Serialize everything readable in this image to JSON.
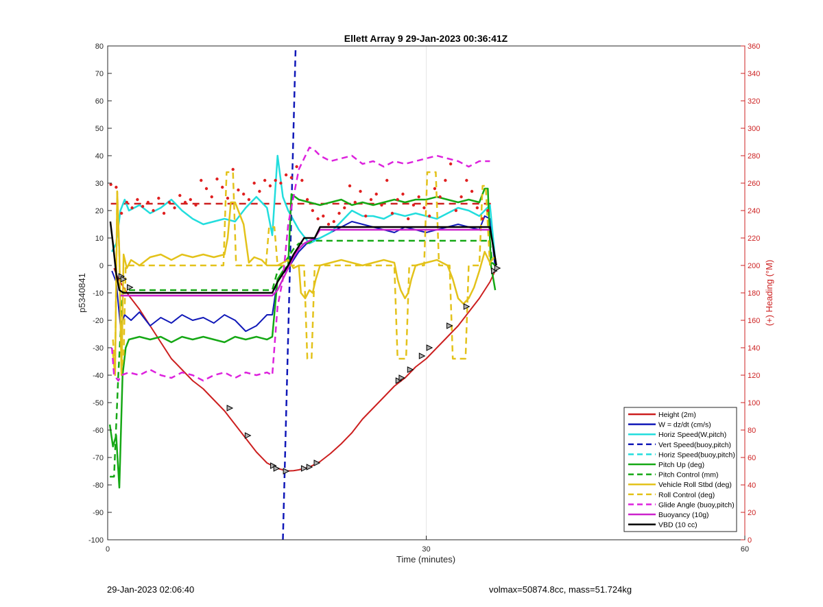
{
  "chart_data": {
    "type": "line",
    "title": "Ellett Array 9 29-Jan-2023 00:36:41Z",
    "xlabel": "Time (minutes)",
    "ylabel": "p5340841",
    "y2label": "(+) Heading (°M)",
    "xlim": [
      0,
      60
    ],
    "ylim": [
      -100,
      80
    ],
    "y2lim": [
      0,
      360
    ],
    "xticks": [
      0,
      30,
      60
    ],
    "yticks": [
      -100,
      -90,
      -80,
      -70,
      -60,
      -50,
      -40,
      -30,
      -20,
      -10,
      0,
      10,
      20,
      30,
      40,
      50,
      60,
      70,
      80
    ],
    "y2ticks": [
      0,
      20,
      40,
      60,
      80,
      100,
      120,
      140,
      160,
      180,
      200,
      220,
      240,
      260,
      280,
      300,
      320,
      340,
      360
    ],
    "grid": true,
    "legend_position": "bottom-right",
    "colors": {
      "heading_axis": "#cc1f1f",
      "heading_dots": "#e02020"
    },
    "series": [
      {
        "name": "Height (2m)",
        "color": "#cc1f1f",
        "style": "solid",
        "width": 2,
        "x": [
          0.6,
          1.0,
          1.5,
          2.0,
          3,
          4,
          5,
          6,
          7,
          8,
          9,
          10,
          11,
          12,
          13,
          14,
          15,
          16,
          16.5,
          17,
          17.5,
          18,
          19,
          20,
          21,
          22,
          23,
          24,
          25,
          26,
          27,
          28,
          29,
          30,
          31,
          32,
          33,
          34,
          35,
          36,
          36.6
        ],
        "y": [
          -1,
          -5,
          -8,
          -11,
          -16,
          -22,
          -28,
          -34,
          -38,
          -42,
          -45,
          -49,
          -53,
          -58,
          -63,
          -68,
          -72,
          -74,
          -74.5,
          -74.9,
          -74.8,
          -74.5,
          -73.5,
          -71.5,
          -68.5,
          -65,
          -61,
          -56,
          -52,
          -48,
          -44,
          -41,
          -37,
          -34,
          -30,
          -26,
          -22,
          -17,
          -12,
          -6,
          -1
        ]
      },
      {
        "name": "W = dz/dt (cm/s)",
        "color": "#1018b8",
        "style": "solid",
        "width": 2,
        "x": [
          0.4,
          0.8,
          1.2,
          1.6,
          2.2,
          3,
          4,
          5,
          6,
          7,
          8,
          9,
          10,
          11,
          12,
          13,
          14,
          15,
          15.5,
          16,
          16.5,
          17,
          18,
          19,
          20,
          21,
          22,
          23,
          24,
          25,
          26,
          27,
          28,
          29,
          30,
          31,
          32,
          33,
          34,
          35,
          35.5,
          36,
          36.5
        ],
        "y": [
          -2,
          -6,
          -22,
          -18,
          -20,
          -17,
          -22,
          -19,
          -21,
          -18,
          -20,
          -19,
          -21,
          -18,
          -20,
          -24,
          -22,
          -18,
          -18,
          -5,
          -3,
          -1,
          5,
          9,
          10,
          12,
          14,
          16,
          15,
          14,
          13,
          12,
          14,
          13,
          12,
          13,
          14,
          15,
          14,
          13,
          18,
          17,
          -1
        ]
      },
      {
        "name": "Horiz Speed(W,pitch)",
        "color": "#22dddd",
        "style": "solid",
        "width": 2.5,
        "x": [
          0.4,
          0.8,
          1.2,
          1.6,
          2,
          3,
          4,
          5,
          6,
          7,
          8,
          9,
          10,
          11,
          12,
          13,
          14,
          15,
          15.5,
          16,
          16.5,
          17,
          18,
          19,
          20,
          21,
          22,
          23,
          24,
          25,
          26,
          27,
          28,
          29,
          30,
          31,
          32,
          33,
          34,
          35,
          35.5,
          36,
          36.5
        ],
        "y": [
          5,
          8,
          20,
          24,
          20,
          22,
          19,
          21,
          24,
          20,
          17,
          15,
          16,
          17,
          16,
          21,
          25,
          21,
          11,
          40,
          25,
          20,
          13,
          8,
          10,
          12,
          16,
          20,
          18,
          18,
          17,
          19,
          18,
          19,
          18,
          17,
          19,
          21,
          20,
          18,
          20,
          22,
          2
        ]
      },
      {
        "name": "Vert Speed(buoy,pitch)",
        "color": "#1018b8",
        "style": "dashed",
        "width": 2.5,
        "x": [
          16.5,
          17.7
        ],
        "y": [
          -100,
          80
        ]
      },
      {
        "name": "Horiz Speed(buoy,pitch)",
        "color": "#22dddd",
        "style": "dashed",
        "width": 2,
        "x": [],
        "y": []
      },
      {
        "name": "Pitch Up (deg)",
        "color": "#15a815",
        "style": "solid",
        "width": 2.5,
        "x": [
          0.2,
          0.5,
          0.8,
          1.1,
          1.4,
          1.7,
          2,
          3,
          4,
          5,
          6,
          7,
          8,
          9,
          10,
          11,
          12,
          13,
          14,
          15,
          15.5,
          16,
          16.5,
          17,
          17.3,
          18,
          19,
          20,
          21,
          22,
          23,
          24,
          25,
          26,
          27,
          28,
          29,
          30,
          31,
          32,
          33,
          34,
          35,
          35.5,
          35.8,
          36.1,
          36.5
        ],
        "y": [
          -58,
          -66,
          -62,
          -81,
          -40,
          -30,
          -27,
          -26,
          -27,
          -26,
          -28,
          -26,
          -27,
          -26,
          -27,
          -28,
          -26,
          -27,
          -26,
          -27,
          -26,
          -5,
          -2,
          0,
          26,
          24,
          23,
          22,
          23,
          24,
          22,
          23,
          22,
          23,
          24,
          23,
          24,
          24,
          25,
          24,
          23,
          24,
          23,
          28,
          28,
          0,
          -9
        ]
      },
      {
        "name": "Pitch Control (mm)",
        "color": "#15a815",
        "style": "dashed",
        "width": 2.5,
        "x": [
          0.2,
          0.6,
          1.0,
          1.4,
          1.8,
          2.2,
          15.5,
          16,
          16.5,
          17,
          17.5,
          18,
          18.8,
          19.3,
          20,
          36,
          36.2,
          36.5
        ],
        "y": [
          -77,
          -77,
          -40,
          -10,
          -9,
          -9,
          -9,
          -2,
          0,
          3,
          6,
          8,
          8,
          9,
          9,
          9,
          1,
          0
        ]
      },
      {
        "name": "Vehicle Roll Stbd (deg)",
        "color": "#e3c21a",
        "style": "solid",
        "width": 2.5,
        "x": [
          0.5,
          0.7,
          0.9,
          1.1,
          1.3,
          1.5,
          1.8,
          2.2,
          3,
          4,
          5,
          6,
          7,
          8,
          9,
          10,
          11,
          11.3,
          11.6,
          12,
          12.3,
          12.8,
          13.3,
          13.8,
          14.5,
          15,
          15.5,
          16,
          16.5,
          17,
          17.5,
          18,
          18.2,
          18.6,
          19,
          19.3,
          19.6,
          20,
          21,
          22,
          23,
          24,
          25,
          26,
          27,
          27.3,
          27.6,
          28,
          28.3,
          28.6,
          29,
          30,
          31,
          32,
          32.5,
          33,
          33.5,
          34,
          34.5,
          35,
          35.5,
          36,
          36.4
        ],
        "y": [
          -32,
          -40,
          27,
          5,
          -40,
          4,
          -1,
          2,
          0,
          3,
          4,
          2,
          4,
          3,
          4,
          3,
          4,
          10,
          23,
          23,
          20,
          15,
          1,
          3,
          2,
          0,
          0,
          0,
          1,
          2,
          -1,
          0,
          -10,
          -12,
          -9,
          -10,
          -5,
          0,
          1,
          2,
          1,
          0,
          1,
          2,
          1,
          -5,
          -9,
          -12,
          -10,
          -5,
          0,
          1,
          2,
          0,
          -5,
          -12,
          -14,
          -12,
          -8,
          -2,
          5,
          1,
          3
        ]
      },
      {
        "name": "Roll Control (deg)",
        "color": "#e3c21a",
        "style": "dashed",
        "width": 2.5,
        "x": [
          0.5,
          0.7,
          0.9,
          1.1,
          1.3,
          1.5,
          1.7,
          2,
          10.9,
          11.2,
          11.8,
          12.1,
          12.4,
          14.9,
          15.2,
          15.7,
          16,
          16.3,
          18.5,
          18.8,
          19.2,
          19.5,
          27,
          27.3,
          28.1,
          28.4,
          29.8,
          30.1,
          30.9,
          31.2,
          32.2,
          32.5,
          33.7,
          34,
          35,
          35.3,
          35.6,
          36
        ],
        "y": [
          -27,
          -38,
          27,
          4,
          -38,
          -33,
          0,
          0,
          0,
          34,
          34,
          0,
          0,
          0,
          14,
          14,
          0,
          0,
          0,
          -34,
          -34,
          0,
          0,
          -34,
          -34,
          0,
          0,
          34,
          34,
          0,
          0,
          -34,
          -34,
          0,
          0,
          29,
          29,
          0
        ]
      },
      {
        "name": "Glide Angle (buoy,pitch)",
        "color": "#dd22dd",
        "style": "dashed",
        "width": 2.5,
        "x": [
          0.4,
          0.6,
          1.0,
          1.3,
          2,
          3,
          4,
          5,
          6,
          7,
          8,
          9,
          10,
          11,
          12,
          13,
          14,
          15,
          15.5,
          16,
          16.5,
          17,
          18,
          18.5,
          19,
          19.5,
          20,
          21,
          22,
          23,
          24,
          25,
          26,
          27,
          28,
          29,
          30,
          31,
          32,
          33,
          34,
          35,
          36
        ],
        "y": [
          -30,
          -40,
          -42,
          -40,
          -39,
          -40,
          -38,
          -40,
          -41,
          -39,
          -40,
          -42,
          -40,
          -39,
          -41,
          -39,
          -40,
          -39,
          -40,
          -15,
          -5,
          15,
          35,
          39,
          43,
          42,
          40,
          38,
          39,
          40,
          37,
          38,
          36,
          38,
          37,
          38,
          39,
          40,
          39,
          38,
          36,
          38,
          38
        ]
      },
      {
        "name": "Buoyancy (10g)",
        "color": "#cc22cc",
        "style": "solid",
        "width": 2.5,
        "x": [
          1.2,
          1.6,
          15.5,
          16,
          16.5,
          17,
          17.5,
          18,
          18.5,
          19,
          19.5,
          20,
          36
        ],
        "y": [
          -11,
          -11,
          -11,
          -9,
          -5,
          -1,
          3,
          6,
          8,
          9,
          10,
          13,
          13
        ]
      },
      {
        "name": "VBD (10 cc)",
        "color": "#000000",
        "style": "solid",
        "width": 2.5,
        "x": [
          0.25,
          0.5,
          0.8,
          1.1,
          1.5,
          15.5,
          16,
          16.5,
          17,
          17.5,
          18,
          18.5,
          19,
          19.5,
          20,
          36,
          36.6
        ],
        "y": [
          16,
          8,
          -3,
          -9,
          -10,
          -10,
          -6,
          -3,
          0,
          4,
          7,
          10,
          10,
          10,
          14,
          14,
          0
        ]
      }
    ],
    "heading_points": {
      "name": "Heading",
      "color": "#e02020",
      "axis": "right",
      "x": [
        0.3,
        0.8,
        1.3,
        1.8,
        2.3,
        2.8,
        3.3,
        3.8,
        4.3,
        4.8,
        5.3,
        5.8,
        6.3,
        6.8,
        7.3,
        7.8,
        8.3,
        8.8,
        9.3,
        9.8,
        10.3,
        10.8,
        11.3,
        11.8,
        12.3,
        12.8,
        13.3,
        13.8,
        14.3,
        14.8,
        15.3,
        15.8,
        16.3,
        16.8,
        17.3,
        17.8,
        18.3,
        18.8,
        19.3,
        19.8,
        20.3,
        20.8,
        21.3,
        21.8,
        22.3,
        22.8,
        23.3,
        23.8,
        24.3,
        24.8,
        25.3,
        25.8,
        26.3,
        26.8,
        27.3,
        27.8,
        28.3,
        28.8,
        29.3,
        29.8,
        30.3,
        30.8,
        31.3,
        31.8,
        32.3,
        32.8,
        33.3,
        33.8,
        34.3,
        34.8,
        35.3,
        35.8
      ],
      "y": [
        259,
        257,
        238,
        246,
        242,
        248,
        243,
        246,
        240,
        249,
        238,
        246,
        242,
        251,
        246,
        248,
        244,
        262,
        256,
        250,
        263,
        257,
        249,
        270,
        255,
        252,
        248,
        260,
        254,
        262,
        258,
        262,
        260,
        266,
        264,
        272,
        262,
        248,
        240,
        234,
        236,
        230,
        232,
        238,
        242,
        258,
        246,
        254,
        236,
        248,
        252,
        244,
        262,
        238,
        248,
        252,
        234,
        244,
        250,
        242,
        236,
        256,
        250,
        262,
        274,
        240,
        250,
        262,
        254,
        242,
        234,
        240
      ]
    },
    "heading_reference": {
      "color": "#cc1f1f",
      "style": "dashed",
      "value": 245
    },
    "markers": {
      "style": "triangle",
      "x": [
        1.3,
        1.5,
        2.1,
        11.5,
        13.2,
        15.6,
        15.9,
        16.8,
        18.5,
        19,
        19.7,
        27.4,
        27.7,
        28.5,
        29.6,
        30.3,
        32.2,
        33.8,
        36.4,
        36.7
      ],
      "y": [
        -4,
        -5,
        -8,
        -52,
        -62,
        -73,
        -74,
        -75,
        -74,
        -73.5,
        -72,
        -42,
        -41,
        -38,
        -33,
        -30,
        -22,
        -15,
        -2,
        -1
      ]
    }
  },
  "footer": {
    "timestamp": "29-Jan-2023 02:06:40",
    "mass_info": "volmax=50874.8cc, mass=51.724kg"
  }
}
